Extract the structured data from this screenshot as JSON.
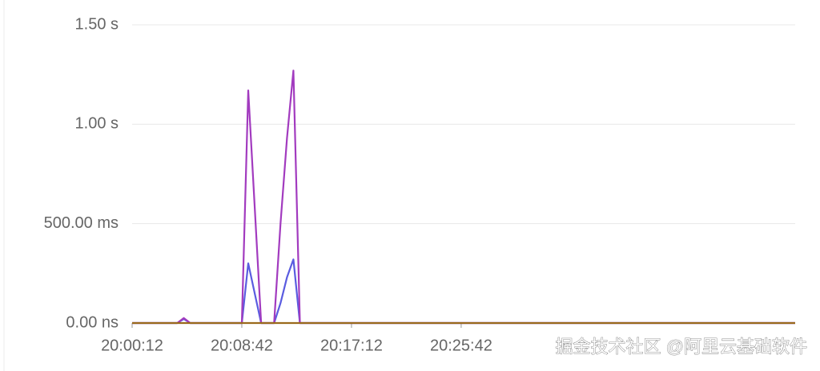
{
  "chart_data": {
    "type": "line",
    "x": [
      "20:00:12",
      "20:03:42",
      "20:04:12",
      "20:04:42",
      "20:08:42",
      "20:09:12",
      "20:10:12",
      "20:11:12",
      "20:11:42",
      "20:12:12",
      "20:12:42",
      "20:13:12",
      "20:51:35"
    ],
    "series": [
      {
        "color": "#5a5ce0",
        "values": [
          0,
          0,
          0.02,
          0,
          0,
          0.3,
          0,
          0,
          0.1,
          0.23,
          0.32,
          0,
          0
        ]
      },
      {
        "color": "#a23bbf",
        "values": [
          0,
          0,
          0.025,
          0,
          0,
          1.17,
          0,
          0,
          0.5,
          0.93,
          1.27,
          0,
          0
        ]
      },
      {
        "color": "#9a6a1c",
        "values": [
          0,
          0,
          0,
          0,
          0,
          0,
          0,
          0,
          0,
          0,
          0,
          0,
          0
        ]
      }
    ],
    "xlim": [
      "20:00:12",
      "20:51:35"
    ],
    "xticks": [
      "20:00:12",
      "20:08:42",
      "20:17:12",
      "20:25:42"
    ],
    "ylim": [
      0,
      1.5
    ],
    "yticks": [
      {
        "value": 0,
        "label": "0.00 ns"
      },
      {
        "value": 0.5,
        "label": "500.00 ms"
      },
      {
        "value": 1,
        "label": "1.00 s"
      },
      {
        "value": 1.5,
        "label": "1.50 s"
      }
    ],
    "grid": true
  },
  "watermark": "掘金技术社区 @阿里云基础软件"
}
